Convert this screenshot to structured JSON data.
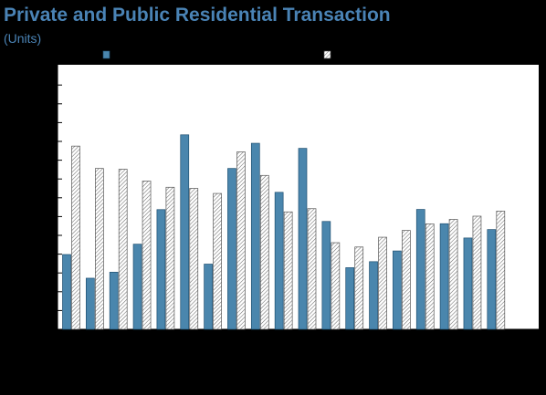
{
  "title": "Private and Public Residential Transaction",
  "subtitle": "(Units)",
  "colors": {
    "background": "#000000",
    "plot_area": "#ffffff",
    "title": "#4a83b5",
    "private_bar_fill": "#4a86ad",
    "private_bar_stroke": "#1f4f70",
    "public_bar_stroke": "#555555"
  },
  "chart_data": {
    "type": "bar",
    "grid": false,
    "legend_position": "top",
    "xlabel": "",
    "ylabel": "",
    "ylim": [
      0,
      100
    ],
    "categories": [
      "",
      "",
      "",
      "",
      "",
      "",
      "",
      "",
      "",
      "",
      "",
      "",
      "",
      "",
      "",
      "",
      "",
      "",
      "",
      ""
    ],
    "series": [
      {
        "pattern": "solid",
        "values": [
          39.8,
          27.2,
          30.4,
          45.3,
          63.7,
          103.5,
          34.7,
          85.6,
          99.0,
          72.9,
          96.3,
          57.4,
          32.8,
          36.0,
          41.7,
          63.8,
          56.2,
          48.6,
          53.1,
          0
        ]
      },
      {
        "pattern": "hatched",
        "values": [
          97.5,
          85.6,
          85.2,
          78.9,
          75.6,
          75.0,
          72.3,
          94.4,
          81.9,
          62.5,
          64.2,
          46.1,
          43.8,
          49.0,
          52.6,
          56.1,
          58.5,
          60.2,
          62.9,
          0
        ]
      }
    ]
  }
}
